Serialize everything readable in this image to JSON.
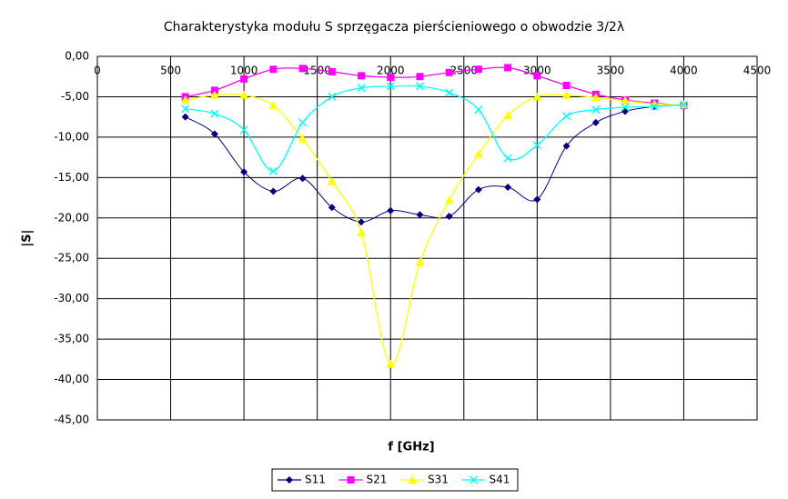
{
  "chart_data": {
    "type": "line",
    "title": "Charakterystyka modułu S sprzęgacza pierścieniowego o obwodzie 3/2λ",
    "x_label": "f [GHz]",
    "y_label": "|S|",
    "x": [
      600,
      800,
      1000,
      1200,
      1400,
      1600,
      1800,
      2000,
      2200,
      2400,
      2600,
      2800,
      3000,
      3200,
      3400,
      3600,
      3800,
      4000
    ],
    "series": [
      {
        "name": "S11",
        "color": "#000080",
        "marker": "diamond",
        "values": [
          -7.5,
          -9.6,
          -14.3,
          -16.7,
          -15.1,
          -18.7,
          -20.5,
          -19.1,
          -19.6,
          -19.8,
          -16.5,
          -16.2,
          -17.7,
          -11.1,
          -8.2,
          -6.8,
          -6.2,
          -6.0
        ]
      },
      {
        "name": "S21",
        "color": "#ff00ff",
        "marker": "square",
        "values": [
          -5.0,
          -4.2,
          -2.8,
          -1.6,
          -1.5,
          -1.9,
          -2.4,
          -2.6,
          -2.5,
          -2.0,
          -1.6,
          -1.4,
          -2.4,
          -3.6,
          -4.7,
          -5.4,
          -5.8,
          -6.1
        ]
      },
      {
        "name": "S31",
        "color": "#ffff00",
        "marker": "triangle",
        "values": [
          -5.4,
          -4.8,
          -4.8,
          -6.1,
          -10.2,
          -15.5,
          -21.8,
          -38.1,
          -25.5,
          -17.8,
          -12.1,
          -7.3,
          -5.0,
          -4.8,
          -5.1,
          -5.5,
          -5.9,
          -6.0
        ]
      },
      {
        "name": "S41",
        "color": "#00ffff",
        "marker": "cross",
        "values": [
          -6.5,
          -7.1,
          -9.1,
          -14.2,
          -8.2,
          -5.0,
          -3.9,
          -3.7,
          -3.7,
          -4.5,
          -6.6,
          -12.6,
          -11.0,
          -7.4,
          -6.6,
          -6.3,
          -6.2,
          -6.0
        ]
      }
    ],
    "xlim": [
      0,
      4500
    ],
    "xticks": [
      0,
      500,
      1000,
      1500,
      2000,
      2500,
      3000,
      3500,
      4000,
      4500
    ],
    "ylim": [
      -45,
      0
    ],
    "yticks": [
      {
        "value": 0,
        "label": "0,00"
      },
      {
        "value": -5,
        "label": "-5,00"
      },
      {
        "value": -10,
        "label": "-10,00"
      },
      {
        "value": -15,
        "label": "-15,00"
      },
      {
        "value": -20,
        "label": "-20,00"
      },
      {
        "value": -25,
        "label": "-25,00"
      },
      {
        "value": -30,
        "label": "-30,00"
      },
      {
        "value": -35,
        "label": "-35,00"
      },
      {
        "value": -40,
        "label": "-40,00"
      },
      {
        "value": -45,
        "label": "-45,00"
      }
    ],
    "grid": true,
    "smooth": true,
    "legend": "bottom"
  }
}
